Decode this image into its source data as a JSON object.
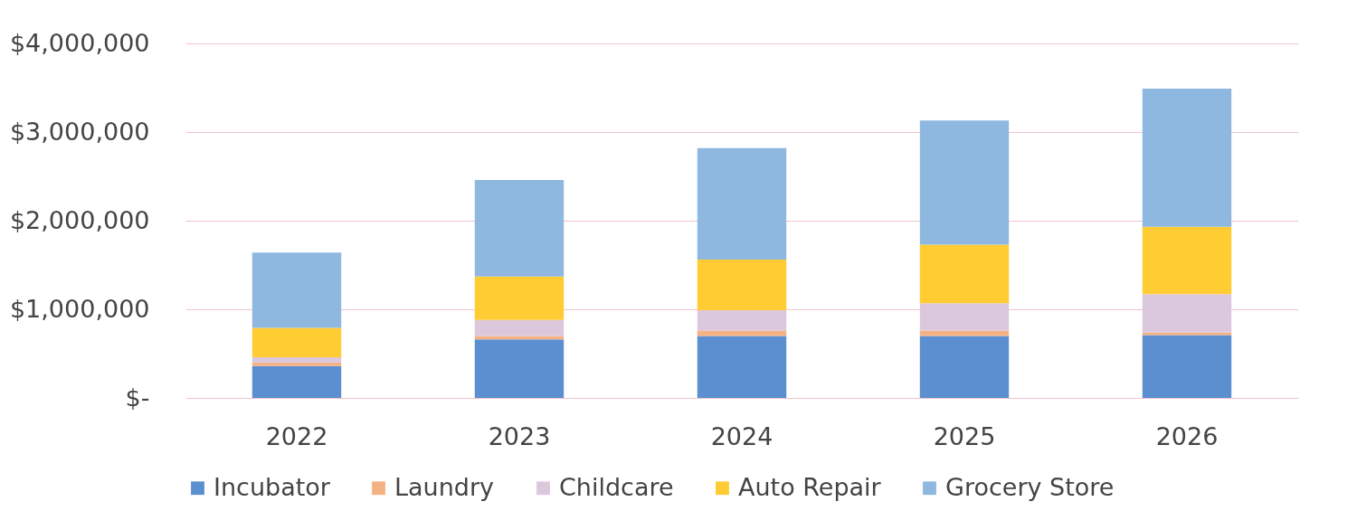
{
  "chart_data": {
    "type": "bar",
    "stacked": true,
    "categories": [
      "2022",
      "2023",
      "2024",
      "2025",
      "2026"
    ],
    "series": [
      {
        "name": "Incubator",
        "color": "#5b8fd0",
        "values": [
          360000,
          660000,
          700000,
          700000,
          710000
        ]
      },
      {
        "name": "Laundry",
        "color": "#f4b183",
        "values": [
          40000,
          40000,
          60000,
          60000,
          30000
        ]
      },
      {
        "name": "Childcare",
        "color": "#dcc8dc",
        "values": [
          60000,
          180000,
          230000,
          310000,
          430000
        ]
      },
      {
        "name": "Auto Repair",
        "color": "#ffcc33",
        "values": [
          330000,
          490000,
          570000,
          660000,
          760000
        ]
      },
      {
        "name": "Grocery Store",
        "color": "#8fb8e0",
        "values": [
          850000,
          1090000,
          1260000,
          1400000,
          1560000
        ]
      }
    ],
    "ylim": [
      0,
      4000000
    ],
    "yticks": [
      {
        "value": 0,
        "label": "$-"
      },
      {
        "value": 1000000,
        "label": "$1,000,000"
      },
      {
        "value": 2000000,
        "label": "$2,000,000"
      },
      {
        "value": 3000000,
        "label": "$3,000,000"
      },
      {
        "value": 4000000,
        "label": "$4,000,000"
      }
    ],
    "grid": true,
    "legend": "bottom"
  }
}
